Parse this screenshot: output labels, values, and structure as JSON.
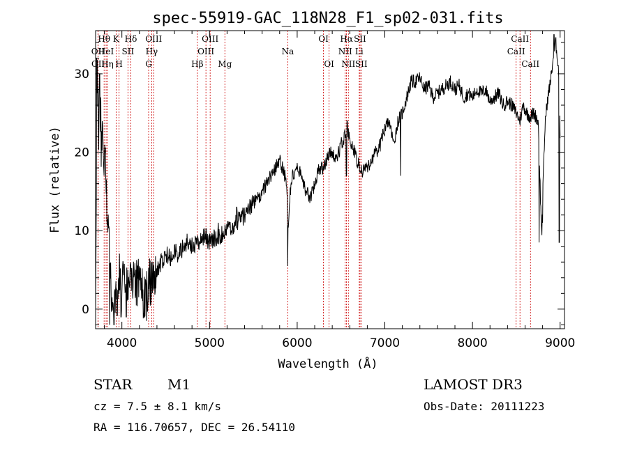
{
  "chart_data": {
    "type": "line",
    "title": "spec-55919-GAC_118N28_F1_sp02-031.fits",
    "xlabel": "Wavelength (Å)",
    "ylabel": "Flux (relative)",
    "xlim": [
      3700,
      9050
    ],
    "ylim": [
      -2.5,
      35.5
    ],
    "xticks": [
      4000,
      5000,
      6000,
      7000,
      8000,
      9000
    ],
    "yticks": [
      0,
      10,
      20,
      30
    ],
    "line_color": "#000000",
    "marker_color": "#cc0000",
    "anchors": [
      [
        3700,
        2
      ],
      [
        3720,
        30
      ],
      [
        3735,
        22
      ],
      [
        3750,
        28
      ],
      [
        3765,
        18
      ],
      [
        3780,
        26
      ],
      [
        3795,
        14
      ],
      [
        3810,
        22
      ],
      [
        3830,
        12
      ],
      [
        3850,
        8
      ],
      [
        3870,
        5
      ],
      [
        3890,
        -1
      ],
      [
        3910,
        3
      ],
      [
        3930,
        2
      ],
      [
        3950,
        1
      ],
      [
        3970,
        4
      ],
      [
        4000,
        3
      ],
      [
        4030,
        5
      ],
      [
        4060,
        2
      ],
      [
        4100,
        4
      ],
      [
        4150,
        3
      ],
      [
        4200,
        4
      ],
      [
        4250,
        1
      ],
      [
        4300,
        3
      ],
      [
        4350,
        4
      ],
      [
        4400,
        5
      ],
      [
        4450,
        6
      ],
      [
        4500,
        7
      ],
      [
        4550,
        6.5
      ],
      [
        4600,
        7.5
      ],
      [
        4650,
        7
      ],
      [
        4700,
        8
      ],
      [
        4750,
        8.5
      ],
      [
        4800,
        8
      ],
      [
        4850,
        8.5
      ],
      [
        4900,
        9
      ],
      [
        4950,
        9.5
      ],
      [
        5000,
        8.5
      ],
      [
        5050,
        9
      ],
      [
        5100,
        9
      ],
      [
        5150,
        9.5
      ],
      [
        5200,
        10
      ],
      [
        5250,
        10.5
      ],
      [
        5300,
        11
      ],
      [
        5350,
        11.5
      ],
      [
        5400,
        12
      ],
      [
        5450,
        13
      ],
      [
        5500,
        13.5
      ],
      [
        5550,
        14
      ],
      [
        5600,
        15
      ],
      [
        5650,
        16
      ],
      [
        5700,
        17
      ],
      [
        5750,
        18
      ],
      [
        5800,
        19
      ],
      [
        5830,
        18
      ],
      [
        5860,
        17
      ],
      [
        5880,
        16
      ],
      [
        5900,
        10
      ],
      [
        5920,
        15
      ],
      [
        5950,
        17
      ],
      [
        6000,
        18
      ],
      [
        6050,
        17
      ],
      [
        6100,
        15
      ],
      [
        6150,
        14
      ],
      [
        6200,
        16
      ],
      [
        6250,
        18
      ],
      [
        6300,
        18
      ],
      [
        6350,
        19.5
      ],
      [
        6400,
        20
      ],
      [
        6450,
        19
      ],
      [
        6500,
        21
      ],
      [
        6540,
        22
      ],
      [
        6580,
        22.5
      ],
      [
        6620,
        21
      ],
      [
        6650,
        20
      ],
      [
        6700,
        18.5
      ],
      [
        6750,
        17.5
      ],
      [
        6800,
        18
      ],
      [
        6850,
        19
      ],
      [
        6900,
        20
      ],
      [
        6950,
        21
      ],
      [
        7000,
        23
      ],
      [
        7050,
        24
      ],
      [
        7100,
        21
      ],
      [
        7150,
        24
      ],
      [
        7200,
        25
      ],
      [
        7250,
        27
      ],
      [
        7300,
        29
      ],
      [
        7350,
        29
      ],
      [
        7400,
        29.5
      ],
      [
        7450,
        28
      ],
      [
        7500,
        28.5
      ],
      [
        7550,
        27
      ],
      [
        7600,
        27.5
      ],
      [
        7650,
        28
      ],
      [
        7700,
        28.5
      ],
      [
        7750,
        29
      ],
      [
        7800,
        28
      ],
      [
        7850,
        28.5
      ],
      [
        7900,
        27
      ],
      [
        7950,
        27.5
      ],
      [
        8000,
        27
      ],
      [
        8050,
        28
      ],
      [
        8100,
        27.5
      ],
      [
        8150,
        28
      ],
      [
        8200,
        26.5
      ],
      [
        8250,
        27
      ],
      [
        8300,
        27.5
      ],
      [
        8350,
        26
      ],
      [
        8400,
        26.5
      ],
      [
        8450,
        26
      ],
      [
        8500,
        25
      ],
      [
        8540,
        24
      ],
      [
        8580,
        26
      ],
      [
        8620,
        25
      ],
      [
        8660,
        24.5
      ],
      [
        8700,
        25
      ],
      [
        8750,
        24
      ],
      [
        8790,
        9
      ],
      [
        8800,
        14
      ],
      [
        8830,
        24
      ],
      [
        8860,
        27
      ],
      [
        8890,
        29
      ],
      [
        8920,
        32
      ],
      [
        8950,
        34
      ],
      [
        8980,
        31
      ],
      [
        9000,
        22
      ]
    ],
    "dips": [
      {
        "x": 3860,
        "y": -2
      },
      {
        "x": 3910,
        "y": -2
      },
      {
        "x": 3990,
        "y": -1
      },
      {
        "x": 4050,
        "y": -1
      },
      {
        "x": 4280,
        "y": -1.5
      },
      {
        "x": 5892,
        "y": 5.5
      },
      {
        "x": 6563,
        "y": 17
      },
      {
        "x": 7180,
        "y": 17
      },
      {
        "x": 8760,
        "y": 8.5
      },
      {
        "x": 8800,
        "y": 11
      },
      {
        "x": 8990,
        "y": 8.5
      }
    ],
    "spikes": [
      {
        "x": 3712,
        "y": 32
      },
      {
        "x": 3728,
        "y": 28
      },
      {
        "x": 3745,
        "y": 30
      },
      {
        "x": 3760,
        "y": 27
      },
      {
        "x": 5100,
        "y": 11
      },
      {
        "x": 5310,
        "y": 13
      },
      {
        "x": 6570,
        "y": 24
      },
      {
        "x": 8930,
        "y": 35
      },
      {
        "x": 8960,
        "y": 33
      }
    ],
    "spectral_lines": [
      {
        "label": "Hθ",
        "x": 3797,
        "row": 0
      },
      {
        "label": "OII",
        "x": 3727,
        "row": 1
      },
      {
        "label": "OII",
        "x": 3729,
        "row": 2
      },
      {
        "label": "HeI",
        "x": 3820,
        "row": 1
      },
      {
        "label": "Hη",
        "x": 3835,
        "row": 2
      },
      {
        "label": "K",
        "x": 3934,
        "row": 0
      },
      {
        "label": "SII",
        "x": 4069,
        "row": 1
      },
      {
        "label": "H",
        "x": 3968,
        "row": 2
      },
      {
        "label": "Hδ",
        "x": 4102,
        "row": 0
      },
      {
        "label": "OIII",
        "x": 4363,
        "row": 0
      },
      {
        "label": "Hγ",
        "x": 4340,
        "row": 1
      },
      {
        "label": "G",
        "x": 4305,
        "row": 2
      },
      {
        "label": "OIII",
        "x": 5007,
        "row": 0
      },
      {
        "label": "OIII",
        "x": 4959,
        "row": 1
      },
      {
        "label": "Hβ",
        "x": 4861,
        "row": 2
      },
      {
        "label": "Mg",
        "x": 5175,
        "row": 2
      },
      {
        "label": "Na",
        "x": 5893,
        "row": 1
      },
      {
        "label": "OI",
        "x": 6300,
        "row": 0
      },
      {
        "label": "OI",
        "x": 6364,
        "row": 2
      },
      {
        "label": "Hα",
        "x": 6563,
        "row": 0
      },
      {
        "label": "NII",
        "x": 6548,
        "row": 1
      },
      {
        "label": "NII",
        "x": 6584,
        "row": 2
      },
      {
        "label": "SII",
        "x": 6717,
        "row": 0
      },
      {
        "label": "Li",
        "x": 6708,
        "row": 1
      },
      {
        "label": "SII",
        "x": 6731,
        "row": 2
      },
      {
        "label": "CaII",
        "x": 8542,
        "row": 0
      },
      {
        "label": "CaII",
        "x": 8498,
        "row": 1
      },
      {
        "label": "CaII",
        "x": 8662,
        "row": 2
      }
    ]
  },
  "info": {
    "object_class": "STAR",
    "subclass": "M1",
    "survey": "LAMOST DR3",
    "cz": "cz = 7.5 ± 8.1 km/s",
    "obs_date": "Obs-Date: 20111223",
    "coords": "RA = 116.70657, DEC =  26.54110"
  }
}
